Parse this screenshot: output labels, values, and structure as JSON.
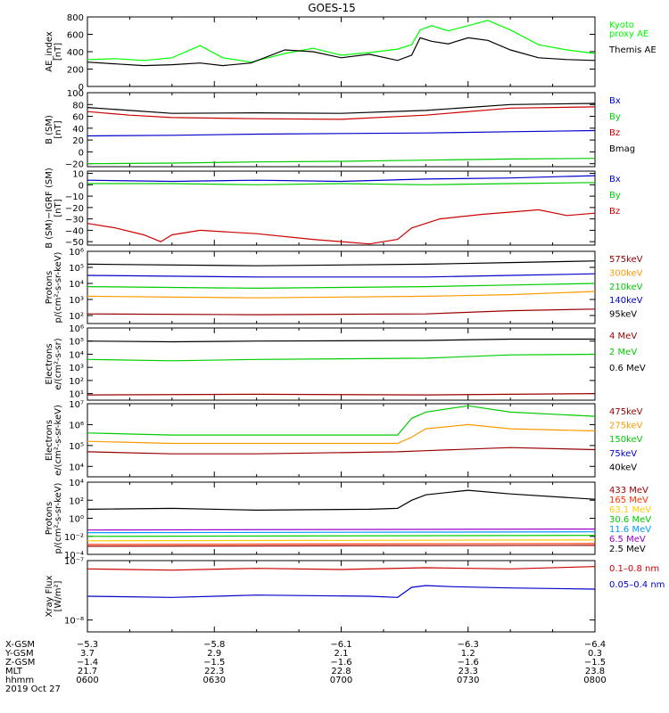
{
  "title": "GOES-15",
  "chart_data": [
    {
      "type": "line",
      "scale": "linear",
      "ylim": [
        0,
        800
      ],
      "yticks": [
        "800",
        "600",
        "400",
        "200",
        "0"
      ],
      "yvalues": [
        800,
        600,
        400,
        200,
        0
      ],
      "ylabel": [
        "AE_index",
        "[nT]"
      ],
      "series": [
        {
          "name": "Kyoto proxy AE",
          "label_lines": [
            "Kyoto",
            "proxy AE"
          ],
          "color": "#00ff00",
          "x": [
            0,
            10,
            20,
            30,
            40,
            48,
            58,
            70,
            80,
            90,
            100,
            110,
            115,
            118,
            122,
            128,
            135,
            142,
            150,
            160,
            170,
            180
          ],
          "values": [
            310,
            320,
            300,
            330,
            470,
            330,
            280,
            380,
            440,
            360,
            390,
            430,
            480,
            650,
            700,
            640,
            700,
            760,
            650,
            480,
            420,
            380
          ]
        },
        {
          "name": "Themis AE",
          "label_lines": [
            "Themis AE"
          ],
          "color": "#000000",
          "x": [
            0,
            10,
            20,
            30,
            40,
            48,
            58,
            70,
            80,
            90,
            100,
            110,
            115,
            118,
            122,
            128,
            135,
            142,
            150,
            160,
            170,
            180
          ],
          "values": [
            280,
            260,
            240,
            250,
            270,
            240,
            270,
            420,
            400,
            330,
            370,
            300,
            360,
            560,
            520,
            490,
            560,
            530,
            420,
            330,
            310,
            300
          ]
        }
      ]
    },
    {
      "type": "line",
      "scale": "linear",
      "ylim": [
        -25,
        100
      ],
      "yticks": [
        "100",
        "80",
        "60",
        "40",
        "20",
        "0",
        "−20"
      ],
      "yvalues": [
        100,
        80,
        60,
        40,
        20,
        0,
        -20
      ],
      "ylabel": [
        "B (SM)",
        "[nT]"
      ],
      "series": [
        {
          "name": "Bx",
          "label_lines": [
            "Bx"
          ],
          "color": "#0000cc",
          "x": [
            0,
            30,
            60,
            90,
            120,
            150,
            180
          ],
          "values": [
            27,
            28,
            30,
            31,
            32,
            34,
            36
          ]
        },
        {
          "name": "By",
          "label_lines": [
            "By"
          ],
          "color": "#00cc00",
          "x": [
            0,
            30,
            60,
            90,
            120,
            150,
            180
          ],
          "values": [
            -20,
            -19,
            -17,
            -16,
            -14,
            -12,
            -11
          ]
        },
        {
          "name": "Bz",
          "label_lines": [
            "Bz"
          ],
          "color": "#cc0000",
          "x": [
            0,
            15,
            30,
            60,
            90,
            120,
            150,
            180
          ],
          "values": [
            68,
            62,
            58,
            56,
            55,
            62,
            74,
            76
          ]
        },
        {
          "name": "Bmag",
          "label_lines": [
            "Bmag"
          ],
          "color": "#000000",
          "x": [
            0,
            15,
            30,
            60,
            90,
            120,
            150,
            180
          ],
          "values": [
            75,
            70,
            65,
            66,
            65,
            70,
            80,
            82
          ]
        }
      ]
    },
    {
      "type": "line",
      "scale": "linear",
      "ylim": [
        -53,
        12
      ],
      "yticks": [
        "10",
        "0",
        "−10",
        "−20",
        "−30",
        "−40",
        "−50"
      ],
      "yvalues": [
        10,
        0,
        -10,
        -20,
        -30,
        -40,
        -50
      ],
      "ylabel": [
        "B (SM)−IGRF (SM)",
        "[nT]"
      ],
      "series": [
        {
          "name": "Bx",
          "label_lines": [
            "Bx"
          ],
          "color": "#0000cc",
          "x": [
            0,
            30,
            60,
            90,
            120,
            150,
            180
          ],
          "values": [
            4,
            3,
            4,
            3,
            5,
            6,
            8
          ]
        },
        {
          "name": "By",
          "label_lines": [
            "By"
          ],
          "color": "#00cc00",
          "x": [
            0,
            30,
            60,
            90,
            120,
            150,
            180
          ],
          "values": [
            1,
            1,
            0,
            1,
            0,
            1,
            2
          ]
        },
        {
          "name": "Bz",
          "label_lines": [
            "Bz"
          ],
          "color": "#cc0000",
          "x": [
            0,
            10,
            20,
            26,
            30,
            40,
            60,
            80,
            100,
            110,
            115,
            125,
            140,
            150,
            160,
            170,
            180
          ],
          "values": [
            -34,
            -38,
            -44,
            -50,
            -44,
            -40,
            -43,
            -48,
            -52,
            -48,
            -38,
            -30,
            -26,
            -24,
            -22,
            -27,
            -25
          ]
        }
      ]
    },
    {
      "type": "line",
      "scale": "log",
      "ylim": [
        1.5,
        6
      ],
      "yticks": [
        "10⁶",
        "10⁵",
        "10⁴",
        "10³",
        "10²"
      ],
      "yvalues": [
        6,
        5,
        4,
        3,
        2
      ],
      "ylabel": [
        "Protons",
        "p/(cm²-s-sr-keV)"
      ],
      "series": [
        {
          "name": "575keV",
          "label_lines": [
            "575keV"
          ],
          "color": "#990000",
          "x": [
            0,
            60,
            120,
            150,
            180
          ],
          "values": [
            2.1,
            2.05,
            2.1,
            2.3,
            2.4
          ]
        },
        {
          "name": "300keV",
          "label_lines": [
            "300keV"
          ],
          "color": "#ff9900",
          "x": [
            0,
            60,
            120,
            150,
            180
          ],
          "values": [
            3.2,
            3.1,
            3.2,
            3.3,
            3.5
          ]
        },
        {
          "name": "210keV",
          "label_lines": [
            "210keV"
          ],
          "color": "#00cc00",
          "x": [
            0,
            60,
            120,
            150,
            180
          ],
          "values": [
            3.8,
            3.7,
            3.8,
            3.9,
            4.0
          ]
        },
        {
          "name": "140keV",
          "label_lines": [
            "140keV"
          ],
          "color": "#0000cc",
          "x": [
            0,
            60,
            120,
            150,
            180
          ],
          "values": [
            4.5,
            4.4,
            4.4,
            4.5,
            4.6
          ]
        },
        {
          "name": "95keV",
          "label_lines": [
            "95keV"
          ],
          "color": "#000000",
          "x": [
            0,
            60,
            120,
            150,
            180
          ],
          "values": [
            5.2,
            5.1,
            5.2,
            5.3,
            5.4
          ]
        }
      ]
    },
    {
      "type": "line",
      "scale": "log",
      "ylim": [
        0.5,
        6
      ],
      "yticks": [
        "10⁶",
        "10⁵",
        "10⁴",
        "10³",
        "10²",
        "10¹"
      ],
      "yvalues": [
        6,
        5,
        4,
        3,
        2,
        1
      ],
      "ylabel": [
        "Electrons",
        "e/(cm²-s-sr)"
      ],
      "series": [
        {
          "name": "4 MeV",
          "label_lines": [
            "4 MeV"
          ],
          "color": "#990000",
          "x": [
            0,
            60,
            120,
            180
          ],
          "values": [
            0.9,
            0.95,
            0.9,
            1.0
          ]
        },
        {
          "name": "2 MeV",
          "label_lines": [
            "2 MeV"
          ],
          "color": "#00cc00",
          "x": [
            0,
            30,
            60,
            120,
            150,
            180
          ],
          "values": [
            3.6,
            3.5,
            3.6,
            3.7,
            3.95,
            4.0
          ]
        },
        {
          "name": "0.6 MeV",
          "label_lines": [
            "0.6 MeV"
          ],
          "color": "#000000",
          "x": [
            0,
            30,
            60,
            120,
            150,
            180
          ],
          "values": [
            5.0,
            4.95,
            5.0,
            5.05,
            5.15,
            5.15
          ]
        }
      ]
    },
    {
      "type": "line",
      "scale": "log",
      "ylim": [
        3.5,
        7
      ],
      "yticks": [
        "10⁷",
        "10⁶",
        "10⁵",
        "10⁴"
      ],
      "yvalues": [
        7,
        6,
        5,
        4
      ],
      "ylabel": [
        "Electrons",
        "e/(cm²-s-sr-keV)"
      ],
      "series": [
        {
          "name": "475keV",
          "label_lines": [
            "475keV"
          ],
          "color": "#990000",
          "x": [
            0,
            30,
            60,
            110,
            120,
            150,
            180
          ],
          "values": [
            4.7,
            4.6,
            4.6,
            4.7,
            4.75,
            4.9,
            4.8
          ]
        },
        {
          "name": "275keV",
          "label_lines": [
            "275keV"
          ],
          "color": "#ff9900",
          "x": [
            0,
            30,
            60,
            110,
            115,
            120,
            135,
            150,
            180
          ],
          "values": [
            5.2,
            5.1,
            5.1,
            5.1,
            5.4,
            5.8,
            6.0,
            5.8,
            5.7
          ]
        },
        {
          "name": "150keV",
          "label_lines": [
            "150keV"
          ],
          "color": "#00cc00",
          "x": [
            0,
            30,
            60,
            110,
            115,
            120,
            135,
            150,
            180
          ],
          "values": [
            5.6,
            5.5,
            5.5,
            5.5,
            6.3,
            6.6,
            6.9,
            6.6,
            6.4
          ]
        },
        {
          "name": "75keV",
          "label_lines": [
            "75keV"
          ],
          "color": "#0000cc",
          "x": [
            0,
            180
          ],
          "values": [
            null,
            null
          ]
        },
        {
          "name": "40keV",
          "label_lines": [
            "40keV"
          ],
          "color": "#000000",
          "x": [
            0,
            180
          ],
          "values": [
            null,
            null
          ]
        }
      ]
    },
    {
      "type": "line",
      "scale": "log",
      "ylim": [
        -4,
        4
      ],
      "yticks": [
        "10⁴",
        "10²",
        "10⁰",
        "10⁻²",
        "10⁻⁴"
      ],
      "yvalues": [
        4,
        2,
        0,
        -2,
        -4
      ],
      "ylabel": [
        "Protons",
        "p/(cm²-s-sr-keV)"
      ],
      "series": [
        {
          "name": "433 MeV",
          "label_lines": [
            "433 MeV"
          ],
          "color": "#990000",
          "x": [
            0,
            180
          ],
          "values": [
            -3.1,
            -3.0
          ]
        },
        {
          "name": "165 MeV",
          "label_lines": [
            "165 MeV"
          ],
          "color": "#ff3300",
          "x": [
            0,
            180
          ],
          "values": [
            -2.9,
            -2.8
          ]
        },
        {
          "name": "63.1 MeV",
          "label_lines": [
            "63.1 MeV"
          ],
          "color": "#ffcc00",
          "x": [
            0,
            180
          ],
          "values": [
            -2.5,
            -2.4
          ]
        },
        {
          "name": "30.6 MeV",
          "label_lines": [
            "30.6 MeV"
          ],
          "color": "#00cc00",
          "x": [
            0,
            180
          ],
          "values": [
            -2.0,
            -1.9
          ]
        },
        {
          "name": "11.6 MeV",
          "label_lines": [
            "11.6 MeV"
          ],
          "color": "#0099ff",
          "x": [
            0,
            180
          ],
          "values": [
            -1.6,
            -1.5
          ]
        },
        {
          "name": "6.5 MeV",
          "label_lines": [
            "6.5 MeV"
          ],
          "color": "#9900cc",
          "x": [
            0,
            180
          ],
          "values": [
            -1.3,
            -1.2
          ]
        },
        {
          "name": "2.5 MeV",
          "label_lines": [
            "2.5 MeV"
          ],
          "color": "#000000",
          "x": [
            0,
            30,
            60,
            100,
            110,
            115,
            120,
            135,
            150,
            180
          ],
          "values": [
            1.0,
            1.1,
            0.9,
            1.0,
            1.1,
            2.0,
            2.6,
            3.1,
            2.7,
            2.1
          ]
        }
      ]
    },
    {
      "type": "line",
      "scale": "log",
      "ylim": [
        -8.2,
        -7
      ],
      "yticks": [
        "10⁻⁷",
        "10⁻⁸"
      ],
      "yvalues": [
        -7,
        -8
      ],
      "ylabel": [
        "Xray Flux",
        "[W/m²]"
      ],
      "series": [
        {
          "name": "0.1-0.8 nm",
          "label_lines": [
            "0.1–0.8 nm"
          ],
          "color": "#cc0000",
          "x": [
            0,
            30,
            60,
            90,
            120,
            150,
            180
          ],
          "values": [
            -7.14,
            -7.16,
            -7.13,
            -7.15,
            -7.12,
            -7.14,
            -7.1
          ]
        },
        {
          "name": "0.05-0.4 nm",
          "label_lines": [
            "0.05–0.4 nm"
          ],
          "color": "#0000cc",
          "x": [
            0,
            30,
            60,
            100,
            110,
            115,
            120,
            130,
            150,
            180
          ],
          "values": [
            -7.6,
            -7.62,
            -7.58,
            -7.6,
            -7.62,
            -7.45,
            -7.42,
            -7.44,
            -7.46,
            -7.48
          ]
        }
      ]
    }
  ],
  "time_axis": {
    "xlim": [
      0,
      120
    ],
    "rows": [
      {
        "label": "X-GSM",
        "values": [
          "−5.3",
          "−5.8",
          "−6.1",
          "−6.3",
          "−6.4"
        ]
      },
      {
        "label": "Y-GSM",
        "values": [
          "3.7",
          "2.9",
          "2.1",
          "1.2",
          "0.3"
        ]
      },
      {
        "label": "Z-GSM",
        "values": [
          "−1.4",
          "−1.5",
          "−1.6",
          "−1.6",
          "−1.5"
        ]
      },
      {
        "label": "MLT",
        "values": [
          "21.7",
          "22.3",
          "22.8",
          "23.3",
          "23.8"
        ]
      },
      {
        "label": "hhmm",
        "values": [
          "0600",
          "0630",
          "0700",
          "0730",
          "0800"
        ]
      }
    ],
    "date": "2019 Oct 27"
  }
}
